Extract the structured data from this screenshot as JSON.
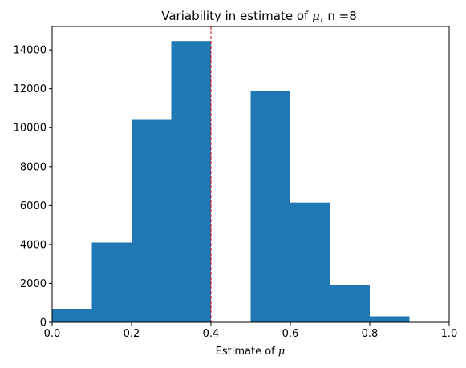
{
  "chart_data": {
    "type": "bar",
    "title": {
      "prefix": "Variability in estimate of ",
      "symbol": "μ",
      "suffix": ", n =8"
    },
    "xlabel": {
      "prefix": "Estimate of ",
      "symbol": "μ"
    },
    "ylabel": "",
    "bins": [
      {
        "start": 0.0,
        "end": 0.1,
        "count": 680
      },
      {
        "start": 0.1,
        "end": 0.2,
        "count": 4100
      },
      {
        "start": 0.2,
        "end": 0.3,
        "count": 10400
      },
      {
        "start": 0.3,
        "end": 0.4,
        "count": 14450
      },
      {
        "start": 0.4,
        "end": 0.5,
        "count": 0
      },
      {
        "start": 0.5,
        "end": 0.6,
        "count": 11900
      },
      {
        "start": 0.6,
        "end": 0.7,
        "count": 6150
      },
      {
        "start": 0.7,
        "end": 0.8,
        "count": 1900
      },
      {
        "start": 0.8,
        "end": 0.9,
        "count": 310
      },
      {
        "start": 0.9,
        "end": 1.0,
        "count": 20
      }
    ],
    "xlim": [
      0.0,
      1.0
    ],
    "ylim": [
      0,
      15200
    ],
    "xticks": [
      "0.0",
      "0.2",
      "0.4",
      "0.6",
      "0.8",
      "1.0"
    ],
    "yticks": [
      "0",
      "2000",
      "4000",
      "6000",
      "8000",
      "10000",
      "12000",
      "14000"
    ],
    "reference_line": {
      "x": 0.4,
      "style": "dashed",
      "color": "#e3000b"
    },
    "bar_color": "#1f77b4",
    "grid": false,
    "legend": "none"
  }
}
